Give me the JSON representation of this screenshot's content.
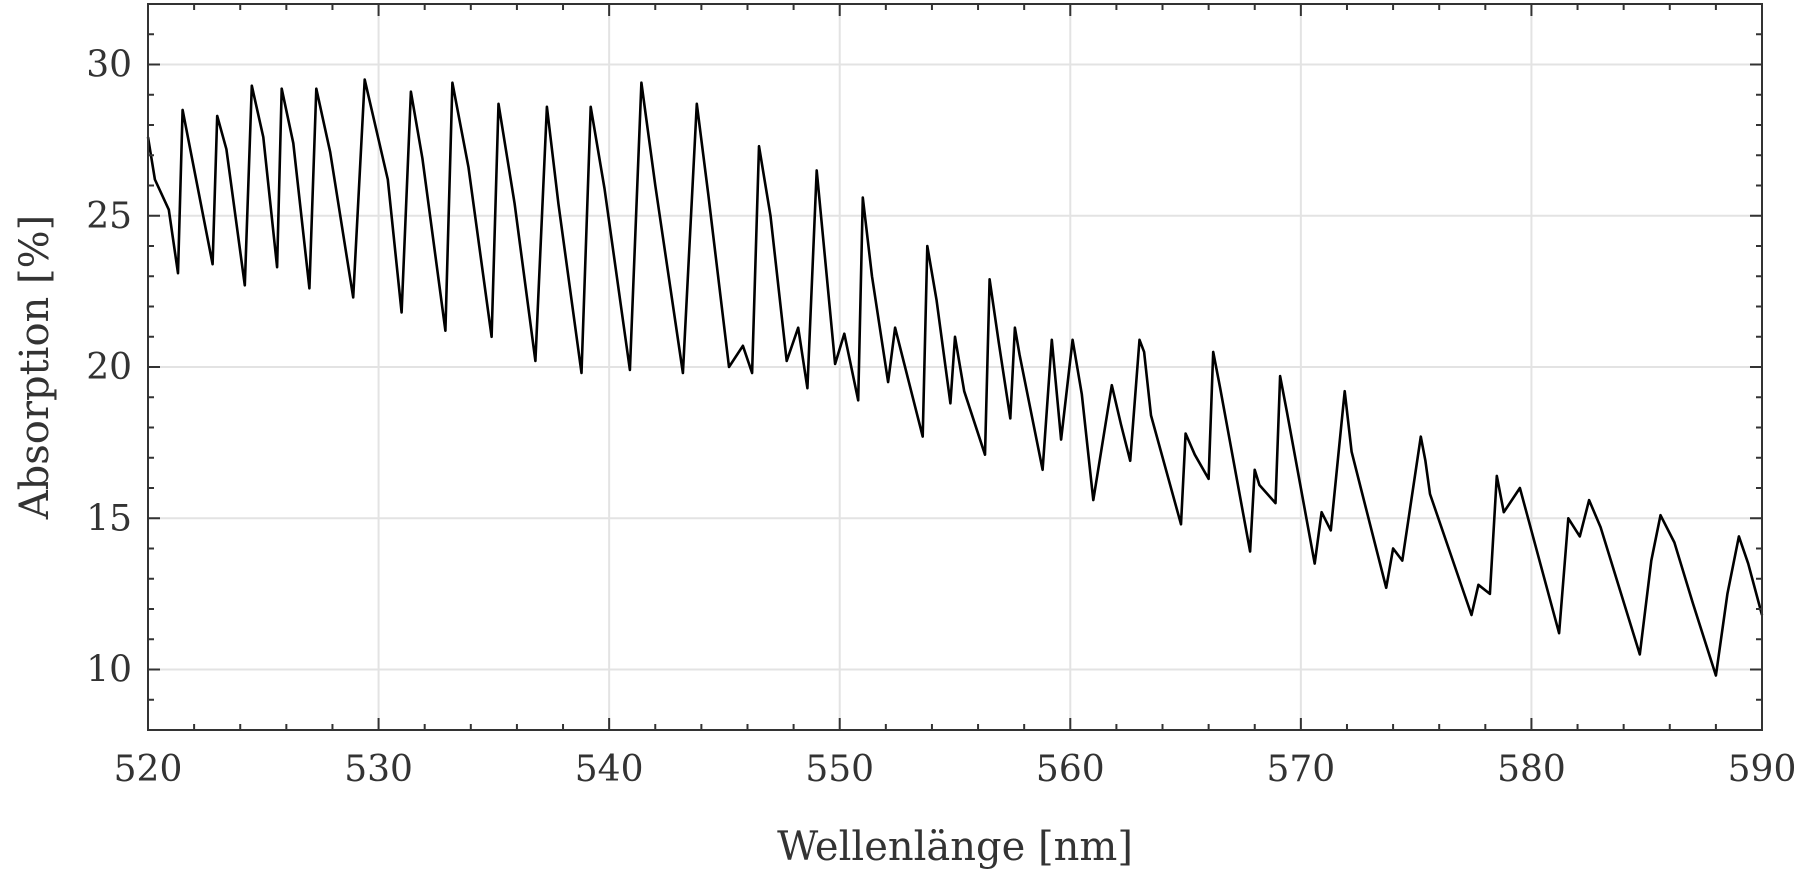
{
  "chart_data": {
    "type": "line",
    "title": "",
    "xlabel": "Wellenlänge [nm]",
    "ylabel": "Absorption [%]",
    "xlim": [
      520,
      590
    ],
    "ylim": [
      8,
      32
    ],
    "xticks": [
      520,
      530,
      540,
      550,
      560,
      570,
      580,
      590
    ],
    "yticks": [
      10,
      15,
      20,
      25,
      30
    ],
    "grid": true,
    "legend": "none",
    "line_color": "#000000",
    "series": [
      {
        "x": [
          520.0,
          520.3,
          520.9,
          521.3,
          521.5,
          522.8,
          523.0,
          523.4,
          524.2,
          524.5,
          525.0,
          525.6,
          525.8,
          526.3,
          527.0,
          527.3,
          527.9,
          528.9,
          529.4,
          530.4,
          531.0,
          531.4,
          531.9,
          532.9,
          533.2,
          533.9,
          534.9,
          535.2,
          535.9,
          536.8,
          537.3,
          537.8,
          538.8,
          539.2,
          539.8,
          540.9,
          541.4,
          542.0,
          543.2,
          543.8,
          544.3,
          545.2,
          545.8,
          546.2,
          546.5,
          547.0,
          547.7,
          548.2,
          548.6,
          549.0,
          549.8,
          550.2,
          550.8,
          551.0,
          551.4,
          552.1,
          552.4,
          552.8,
          553.6,
          553.8,
          554.2,
          554.8,
          555.0,
          555.4,
          556.3,
          556.5,
          556.9,
          557.4,
          557.6,
          557.8,
          558.8,
          559.2,
          559.6,
          560.1,
          560.5,
          561.0,
          561.8,
          562.2,
          562.6,
          563.0,
          563.2,
          563.5,
          564.8,
          565.0,
          565.4,
          566.0,
          566.2,
          566.5,
          567.8,
          568.0,
          568.2,
          568.9,
          569.1,
          569.4,
          570.6,
          570.9,
          571.3,
          571.9,
          572.2,
          572.6,
          573.7,
          574.0,
          574.4,
          575.2,
          575.4,
          575.6,
          577.4,
          577.7,
          578.2,
          578.5,
          578.8,
          579.5,
          581.2,
          581.6,
          582.1,
          582.5,
          583.0,
          584.7,
          585.2,
          585.6,
          586.2,
          587.0,
          588.0,
          588.5,
          589.0,
          589.4,
          590.0
        ],
        "values": [
          27.6,
          26.2,
          25.2,
          23.1,
          28.5,
          23.4,
          28.3,
          27.2,
          22.7,
          29.3,
          27.6,
          23.3,
          29.2,
          27.4,
          22.6,
          29.2,
          27.1,
          22.3,
          29.5,
          26.2,
          21.8,
          29.1,
          26.9,
          21.2,
          29.4,
          26.6,
          21.0,
          28.7,
          25.4,
          20.2,
          28.6,
          25.4,
          19.8,
          28.6,
          25.9,
          19.9,
          29.4,
          26.0,
          19.8,
          28.7,
          25.7,
          20.0,
          20.7,
          19.8,
          27.3,
          25.0,
          20.2,
          21.3,
          19.3,
          26.5,
          20.1,
          21.1,
          18.9,
          25.6,
          23.0,
          19.5,
          21.3,
          20.1,
          17.7,
          24.0,
          22.2,
          18.8,
          21.0,
          19.2,
          17.1,
          22.9,
          20.8,
          18.3,
          21.3,
          20.4,
          16.6,
          20.9,
          17.6,
          20.9,
          19.1,
          15.6,
          19.4,
          18.1,
          16.9,
          20.9,
          20.5,
          18.4,
          14.8,
          17.8,
          17.1,
          16.3,
          20.5,
          19.3,
          13.9,
          16.6,
          16.1,
          15.5,
          19.7,
          18.5,
          13.5,
          15.2,
          14.6,
          19.2,
          17.2,
          16.0,
          12.7,
          14.0,
          13.6,
          17.7,
          16.9,
          15.8,
          11.8,
          12.8,
          12.5,
          16.4,
          15.2,
          16.0,
          11.2,
          15.0,
          14.4,
          15.6,
          14.7,
          10.5,
          13.6,
          15.1,
          14.2,
          12.2,
          9.8,
          12.5,
          14.4,
          13.5,
          11.8
        ]
      }
    ]
  }
}
